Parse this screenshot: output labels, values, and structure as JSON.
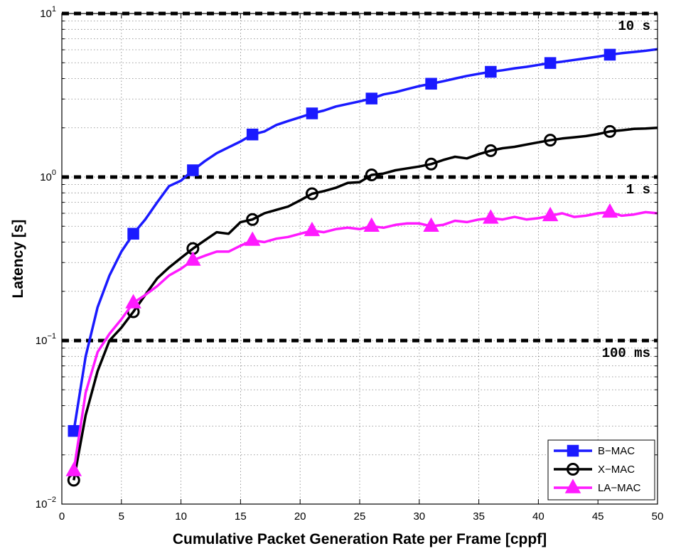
{
  "chart_data": {
    "type": "line",
    "xlabel": "Cumulative Packet Generation Rate per Frame [cppf]",
    "ylabel": "Latency [s]",
    "xlim": [
      0,
      50
    ],
    "ylim": [
      0.01,
      10
    ],
    "yscale": "log",
    "grid": true,
    "legend_position": "bottom-right",
    "x_ticks": [
      {
        "value": 0,
        "label": "0"
      },
      {
        "value": 5,
        "label": "5"
      },
      {
        "value": 10,
        "label": "10"
      },
      {
        "value": 15,
        "label": "15"
      },
      {
        "value": 20,
        "label": "20"
      },
      {
        "value": 25,
        "label": "25"
      },
      {
        "value": 30,
        "label": "30"
      },
      {
        "value": 35,
        "label": "35"
      },
      {
        "value": 40,
        "label": "40"
      },
      {
        "value": 45,
        "label": "45"
      },
      {
        "value": 50,
        "label": "50"
      }
    ],
    "y_ticks": [
      {
        "value": 0.01,
        "base": "10",
        "exp": "−2"
      },
      {
        "value": 0.1,
        "base": "10",
        "exp": "−1"
      },
      {
        "value": 1,
        "base": "10",
        "exp": "0"
      },
      {
        "value": 10,
        "base": "10",
        "exp": "1"
      }
    ],
    "reference_lines": [
      {
        "y": 10,
        "label": "10 s"
      },
      {
        "y": 1,
        "label": "1 s"
      },
      {
        "y": 0.1,
        "label": "100 ms"
      }
    ],
    "series": [
      {
        "name": "B−MAC",
        "color": "#1a1aff",
        "marker": "square",
        "x": [
          1,
          2,
          3,
          4,
          5,
          6,
          7,
          8,
          9,
          10,
          11,
          12,
          13,
          14,
          15,
          16,
          17,
          18,
          19,
          20,
          21,
          22,
          23,
          24,
          25,
          26,
          27,
          28,
          29,
          30,
          31,
          32,
          33,
          34,
          35,
          36,
          37,
          38,
          39,
          40,
          41,
          42,
          43,
          44,
          45,
          46,
          47,
          48,
          49,
          50
        ],
        "y": [
          0.028,
          0.08,
          0.16,
          0.25,
          0.35,
          0.45,
          0.55,
          0.7,
          0.88,
          0.95,
          1.1,
          1.25,
          1.4,
          1.52,
          1.65,
          1.82,
          1.9,
          2.08,
          2.2,
          2.32,
          2.45,
          2.55,
          2.7,
          2.8,
          2.9,
          3.02,
          3.2,
          3.3,
          3.45,
          3.6,
          3.72,
          3.85,
          4.0,
          4.15,
          4.28,
          4.4,
          4.5,
          4.62,
          4.72,
          4.85,
          4.98,
          5.08,
          5.2,
          5.32,
          5.45,
          5.6,
          5.72,
          5.82,
          5.92,
          6.05
        ],
        "marker_x": [
          1,
          6,
          11,
          16,
          21,
          26,
          31,
          36,
          41,
          46
        ]
      },
      {
        "name": "X−MAC",
        "color": "#000000",
        "marker": "circle",
        "x": [
          1,
          2,
          3,
          4,
          5,
          6,
          7,
          8,
          9,
          10,
          11,
          12,
          13,
          14,
          15,
          16,
          17,
          18,
          19,
          20,
          21,
          22,
          23,
          24,
          25,
          26,
          27,
          28,
          29,
          30,
          31,
          32,
          33,
          34,
          35,
          36,
          37,
          38,
          39,
          40,
          41,
          42,
          43,
          44,
          45,
          46,
          47,
          48,
          49,
          50
        ],
        "y": [
          0.014,
          0.035,
          0.065,
          0.1,
          0.12,
          0.15,
          0.19,
          0.24,
          0.28,
          0.32,
          0.365,
          0.41,
          0.46,
          0.45,
          0.53,
          0.55,
          0.6,
          0.63,
          0.66,
          0.72,
          0.79,
          0.82,
          0.86,
          0.92,
          0.93,
          1.03,
          1.05,
          1.1,
          1.13,
          1.16,
          1.2,
          1.27,
          1.33,
          1.3,
          1.38,
          1.45,
          1.5,
          1.53,
          1.58,
          1.63,
          1.68,
          1.72,
          1.75,
          1.78,
          1.83,
          1.9,
          1.93,
          1.97,
          1.98,
          2.0
        ],
        "marker_x": [
          1,
          6,
          11,
          16,
          21,
          26,
          31,
          36,
          41,
          46
        ]
      },
      {
        "name": "LA−MAC",
        "color": "#ff1aff",
        "marker": "triangle",
        "x": [
          1,
          2,
          3,
          4,
          5,
          6,
          7,
          8,
          9,
          10,
          11,
          12,
          13,
          14,
          15,
          16,
          17,
          18,
          19,
          20,
          21,
          22,
          23,
          24,
          25,
          26,
          27,
          28,
          29,
          30,
          31,
          32,
          33,
          34,
          35,
          36,
          37,
          38,
          39,
          40,
          41,
          42,
          43,
          44,
          45,
          46,
          47,
          48,
          49,
          50
        ],
        "y": [
          0.016,
          0.048,
          0.085,
          0.11,
          0.135,
          0.17,
          0.19,
          0.215,
          0.25,
          0.275,
          0.31,
          0.33,
          0.35,
          0.35,
          0.38,
          0.41,
          0.4,
          0.42,
          0.43,
          0.45,
          0.47,
          0.46,
          0.48,
          0.49,
          0.48,
          0.5,
          0.49,
          0.51,
          0.52,
          0.52,
          0.5,
          0.51,
          0.54,
          0.53,
          0.55,
          0.56,
          0.55,
          0.57,
          0.55,
          0.56,
          0.58,
          0.6,
          0.57,
          0.58,
          0.6,
          0.61,
          0.58,
          0.59,
          0.61,
          0.6
        ],
        "marker_x": [
          1,
          6,
          11,
          16,
          21,
          26,
          31,
          36,
          41,
          46
        ]
      }
    ]
  }
}
